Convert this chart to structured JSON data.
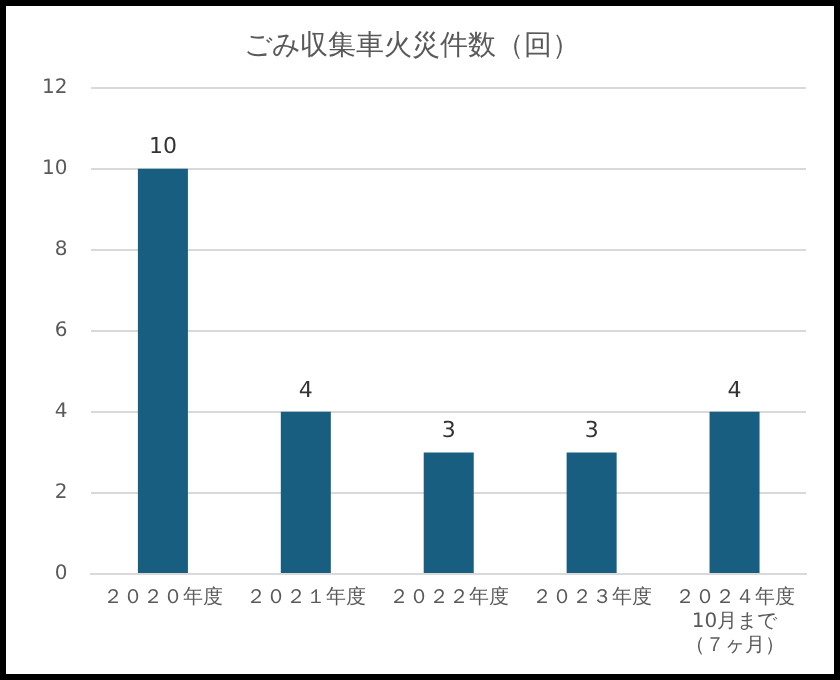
{
  "chart_data": {
    "type": "bar",
    "title": "ごみ収集車火災件数（回）",
    "categories": [
      "２０２０年度",
      "２０２１年度",
      "２０２２年度",
      "２０２３年度",
      "２０２４年度\n10月まで（７ヶ月）"
    ],
    "values": [
      10,
      4,
      3,
      3,
      4
    ],
    "color": "#175e80",
    "ylim": [
      0,
      12
    ],
    "yticks": [
      0,
      2,
      4,
      6,
      8,
      10,
      12
    ],
    "grid": "y",
    "data_labels": true
  }
}
